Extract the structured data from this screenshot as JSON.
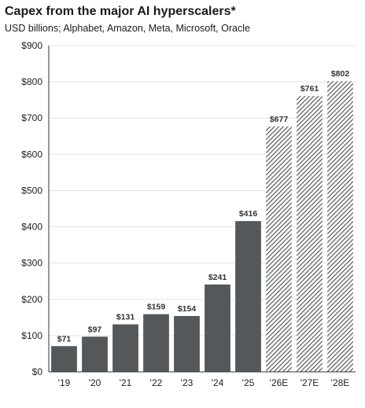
{
  "header": {
    "title": "Capex from the major AI hyperscalers*",
    "subtitle": "USD billions; Alphabet, Amazon, Meta, Microsoft, Oracle"
  },
  "colors": {
    "actual": "#54585a",
    "estimate_stripe": "#54585a",
    "grid": "#e3e3e3",
    "axis": "#333333"
  },
  "chart_data": {
    "type": "bar",
    "title": "Capex from the major AI hyperscalers*",
    "subtitle": "USD billions; Alphabet, Amazon, Meta, Microsoft, Oracle",
    "categories": [
      "'19",
      "'20",
      "'21",
      "'22",
      "'23",
      "'24",
      "'25",
      "'26E",
      "'27E",
      "'28E"
    ],
    "values": [
      71,
      97,
      131,
      159,
      154,
      241,
      416,
      677,
      761,
      802
    ],
    "data_labels": [
      "$71",
      "$97",
      "$131",
      "$159",
      "$154",
      "$241",
      "$416",
      "$677",
      "$761",
      "$802"
    ],
    "estimate": [
      false,
      false,
      false,
      false,
      false,
      false,
      false,
      true,
      true,
      true
    ],
    "ylim": [
      0,
      900
    ],
    "yticks": [
      0,
      100,
      200,
      300,
      400,
      500,
      600,
      700,
      800,
      900
    ],
    "ytick_labels": [
      "$0",
      "$100",
      "$200",
      "$300",
      "$400",
      "$500",
      "$600",
      "$700",
      "$800",
      "$900"
    ],
    "xlabel": "",
    "ylabel": "",
    "grid": true,
    "estimate_style": "hatched"
  }
}
